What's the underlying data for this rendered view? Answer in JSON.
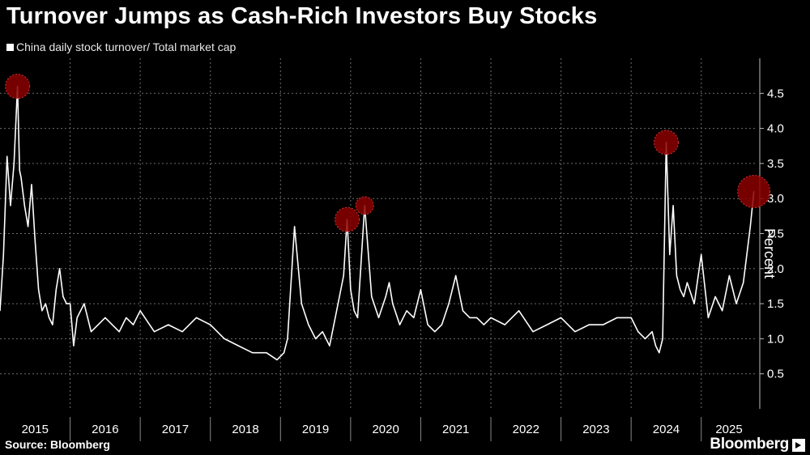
{
  "title": "Turnover Jumps as Cash-Rich Investors Buy Stocks",
  "legend_label": "China daily stock turnover/ Total market cap",
  "source": "Source: Bloomberg",
  "brand": "Bloomberg",
  "colors": {
    "background": "#000000",
    "line": "#ffffff",
    "grid": "#6e6e6e",
    "highlight": "#8b0000"
  },
  "chart_data": {
    "type": "line",
    "title": "Turnover Jumps as Cash-Rich Investors Buy Stocks",
    "ylabel": "Percent",
    "xlabel": "",
    "ylim": [
      0,
      5
    ],
    "yticks": [
      0.5,
      1.0,
      1.5,
      2.0,
      2.5,
      3.0,
      3.5,
      4.0,
      4.5
    ],
    "ytick_labels": [
      "0.5",
      "1.0",
      "1.5",
      "2.0",
      "2.5",
      "3.0",
      "3.5",
      "4.0",
      "4.5"
    ],
    "xlim": [
      2015.0,
      2025.8
    ],
    "xtick_labels": [
      "2015",
      "2016",
      "2017",
      "2018",
      "2019",
      "2020",
      "2021",
      "2022",
      "2023",
      "2024",
      "2025"
    ],
    "grid": true,
    "series": [
      {
        "name": "China daily stock turnover/ Total market cap",
        "x": [
          2015.0,
          2015.05,
          2015.1,
          2015.15,
          2015.2,
          2015.25,
          2015.28,
          2015.3,
          2015.35,
          2015.4,
          2015.45,
          2015.5,
          2015.55,
          2015.6,
          2015.65,
          2015.7,
          2015.75,
          2015.8,
          2015.85,
          2015.9,
          2015.95,
          2016.0,
          2016.05,
          2016.1,
          2016.2,
          2016.3,
          2016.4,
          2016.5,
          2016.6,
          2016.7,
          2016.8,
          2016.9,
          2017.0,
          2017.2,
          2017.4,
          2017.6,
          2017.8,
          2018.0,
          2018.2,
          2018.4,
          2018.6,
          2018.8,
          2018.95,
          2019.05,
          2019.1,
          2019.2,
          2019.3,
          2019.4,
          2019.5,
          2019.6,
          2019.7,
          2019.8,
          2019.9,
          2019.95,
          2020.0,
          2020.05,
          2020.1,
          2020.2,
          2020.3,
          2020.4,
          2020.5,
          2020.55,
          2020.6,
          2020.7,
          2020.8,
          2020.9,
          2021.0,
          2021.1,
          2021.2,
          2021.3,
          2021.4,
          2021.5,
          2021.6,
          2021.7,
          2021.8,
          2021.9,
          2022.0,
          2022.2,
          2022.4,
          2022.6,
          2022.8,
          2023.0,
          2023.2,
          2023.4,
          2023.6,
          2023.8,
          2024.0,
          2024.1,
          2024.2,
          2024.3,
          2024.35,
          2024.4,
          2024.45,
          2024.5,
          2024.55,
          2024.6,
          2024.65,
          2024.7,
          2024.75,
          2024.8,
          2024.9,
          2025.0,
          2025.1,
          2025.2,
          2025.3,
          2025.4,
          2025.5,
          2025.6,
          2025.65,
          2025.7,
          2025.75
        ],
        "y": [
          1.4,
          2.2,
          3.6,
          2.9,
          3.5,
          4.6,
          3.4,
          3.3,
          2.9,
          2.6,
          3.2,
          2.4,
          1.7,
          1.4,
          1.5,
          1.3,
          1.2,
          1.7,
          2.0,
          1.6,
          1.5,
          1.5,
          0.9,
          1.3,
          1.5,
          1.1,
          1.2,
          1.3,
          1.2,
          1.1,
          1.3,
          1.2,
          1.4,
          1.1,
          1.2,
          1.1,
          1.3,
          1.2,
          1.0,
          0.9,
          0.8,
          0.8,
          0.7,
          0.8,
          1.0,
          2.6,
          1.5,
          1.2,
          1.0,
          1.1,
          0.9,
          1.4,
          1.9,
          2.7,
          1.7,
          1.4,
          1.3,
          2.9,
          1.6,
          1.3,
          1.6,
          1.8,
          1.5,
          1.2,
          1.4,
          1.3,
          1.7,
          1.2,
          1.1,
          1.2,
          1.5,
          1.9,
          1.4,
          1.3,
          1.3,
          1.2,
          1.3,
          1.2,
          1.4,
          1.1,
          1.2,
          1.3,
          1.1,
          1.2,
          1.2,
          1.3,
          1.3,
          1.1,
          1.0,
          1.1,
          0.9,
          0.8,
          1.0,
          3.8,
          2.2,
          2.9,
          1.9,
          1.7,
          1.6,
          1.8,
          1.5,
          2.2,
          1.3,
          1.6,
          1.4,
          1.9,
          1.5,
          1.8,
          2.2,
          2.6,
          3.1
        ]
      }
    ],
    "highlights": [
      {
        "x": 2015.25,
        "y": 4.6
      },
      {
        "x": 2019.95,
        "y": 2.7
      },
      {
        "x": 2020.2,
        "y": 2.9
      },
      {
        "x": 2024.5,
        "y": 3.8
      },
      {
        "x": 2025.75,
        "y": 3.1
      }
    ]
  }
}
